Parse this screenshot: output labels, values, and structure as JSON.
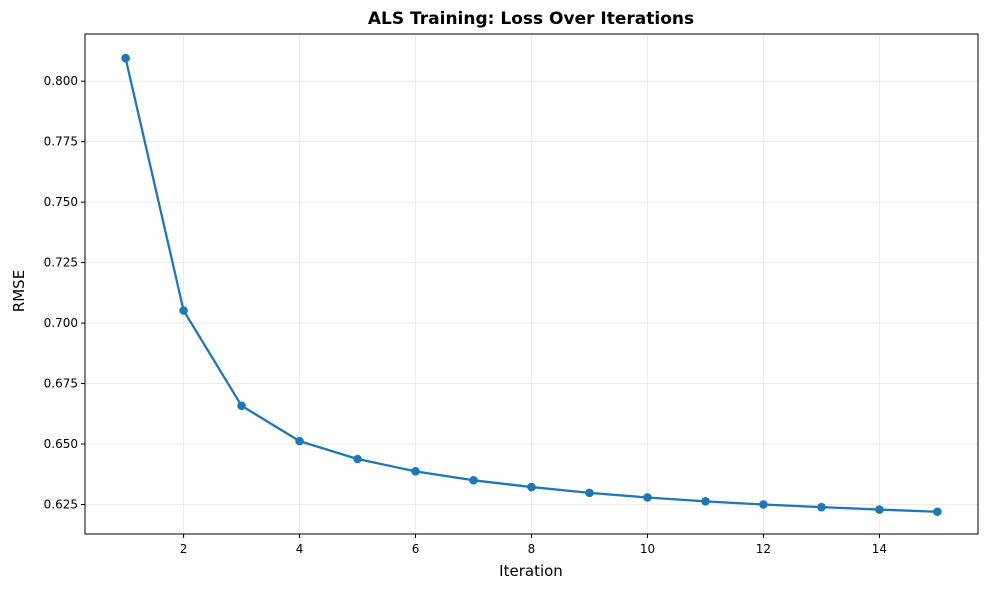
{
  "chart_data": {
    "type": "line",
    "title": "ALS Training: Loss Over Iterations",
    "xlabel": "Iteration",
    "ylabel": "RMSE",
    "xlim": [
      0.3,
      15.7
    ],
    "ylim": [
      0.6128,
      0.8195
    ],
    "xticks": [
      2,
      4,
      6,
      8,
      10,
      12,
      14
    ],
    "xtick_labels": [
      "2",
      "4",
      "6",
      "8",
      "10",
      "12",
      "14"
    ],
    "yticks": [
      0.625,
      0.65,
      0.675,
      0.7,
      0.725,
      0.75,
      0.775,
      0.8
    ],
    "ytick_labels": [
      "0.625",
      "0.650",
      "0.675",
      "0.700",
      "0.725",
      "0.750",
      "0.775",
      "0.800"
    ],
    "grid": true,
    "series": [
      {
        "name": "RMSE",
        "color": "#1f77b4",
        "x": [
          1,
          2,
          3,
          4,
          5,
          6,
          7,
          8,
          9,
          10,
          11,
          12,
          13,
          14,
          15
        ],
        "values": [
          0.8095,
          0.7052,
          0.6658,
          0.6512,
          0.6438,
          0.6387,
          0.635,
          0.6322,
          0.6298,
          0.6279,
          0.6263,
          0.625,
          0.6239,
          0.6229,
          0.622
        ]
      }
    ]
  }
}
